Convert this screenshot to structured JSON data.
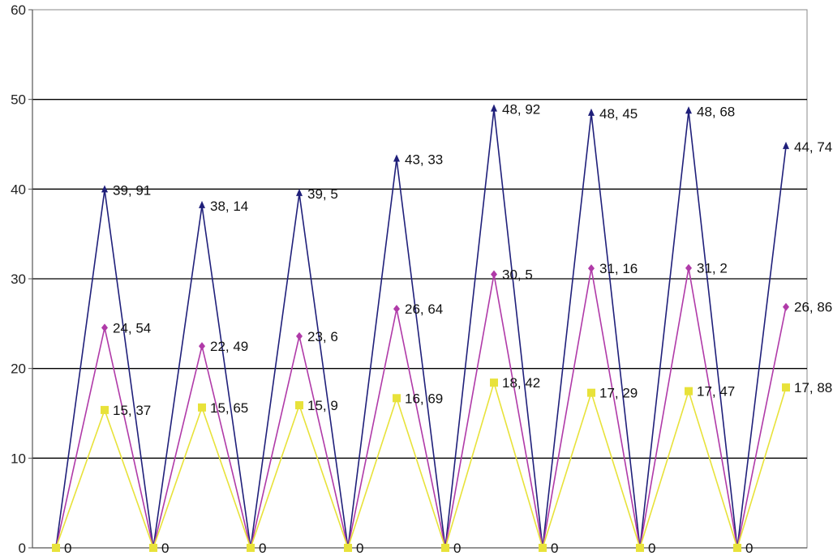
{
  "chart_data": {
    "type": "line",
    "title": "",
    "xlabel": "",
    "ylabel": "",
    "ylim": [
      0,
      60
    ],
    "yticks": [
      0,
      10,
      20,
      30,
      40,
      50,
      60
    ],
    "grid": true,
    "legend": "none",
    "x": [
      0,
      1,
      2,
      3,
      4,
      5,
      6,
      7,
      8,
      9,
      10,
      11,
      12,
      13,
      14,
      15,
      16
    ],
    "series": [
      {
        "color": "#1f1f7a",
        "marker": "triangle",
        "values": [
          0,
          39.91,
          0,
          38.14,
          0,
          39.5,
          0,
          43.33,
          0,
          48.92,
          0,
          48.45,
          0,
          48.68,
          0,
          44.74,
          null
        ],
        "labels": [
          "",
          "39, 91",
          "",
          "38, 14",
          "",
          "39, 5",
          "",
          "43, 33",
          "",
          "48, 92",
          "",
          "48, 45",
          "",
          "48, 68",
          "",
          "44, 74",
          ""
        ]
      },
      {
        "color": "#b03aa8",
        "marker": "diamond",
        "values": [
          0,
          24.54,
          0,
          22.49,
          0,
          23.6,
          0,
          26.64,
          0,
          30.5,
          0,
          31.16,
          0,
          31.2,
          0,
          26.86,
          null
        ],
        "labels": [
          "",
          "24, 54",
          "",
          "22, 49",
          "",
          "23, 6",
          "",
          "26, 64",
          "",
          "30, 5",
          "",
          "31, 16",
          "",
          "31, 2",
          "",
          "26, 86",
          ""
        ]
      },
      {
        "color": "#e8e23a",
        "marker": "square",
        "values": [
          0,
          15.37,
          0,
          15.65,
          0,
          15.9,
          0,
          16.69,
          0,
          18.42,
          0,
          17.29,
          0,
          17.47,
          0,
          17.88,
          null
        ],
        "labels": [
          "0",
          "15, 37",
          "0",
          "15, 65",
          "0",
          "15, 9",
          "0",
          "16, 69",
          "0",
          "18, 42",
          "0",
          "17, 29",
          "0",
          "17, 47",
          "0",
          "17, 88",
          ""
        ]
      }
    ]
  }
}
